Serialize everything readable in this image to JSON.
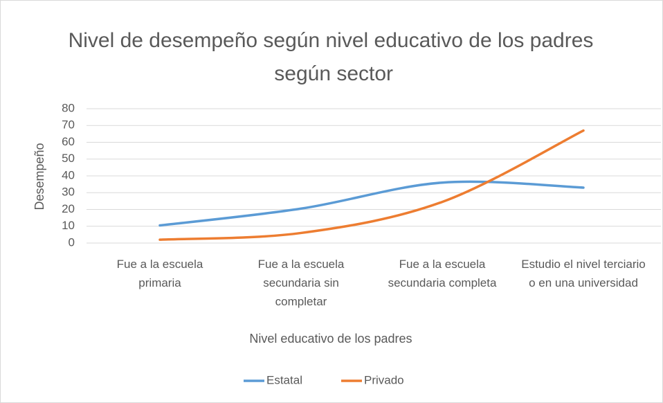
{
  "chart_data": {
    "type": "line",
    "title": "Nivel de desempeño según nivel educativo de los padres según sector",
    "x_label": "Nivel educativo de los padres",
    "y_label": "Desempeño",
    "categories": [
      "Fue a la escuela primaria",
      "Fue a la escuela secundaria sin completar",
      "Fue a la escuela secundaria completa",
      "Estudio el nivel terciario o en una universidad"
    ],
    "series": [
      {
        "name": "Estatal",
        "color": "#5b9bd5",
        "values": [
          10.5,
          20.5,
          36,
          33
        ]
      },
      {
        "name": "Privado",
        "color": "#ed7d31",
        "values": [
          2,
          6,
          24.5,
          67
        ]
      }
    ],
    "ylim": [
      0,
      80
    ],
    "yticks": [
      0,
      10,
      20,
      30,
      40,
      50,
      60,
      70,
      80
    ],
    "grid": true,
    "smooth": true,
    "legend": "bottom"
  }
}
